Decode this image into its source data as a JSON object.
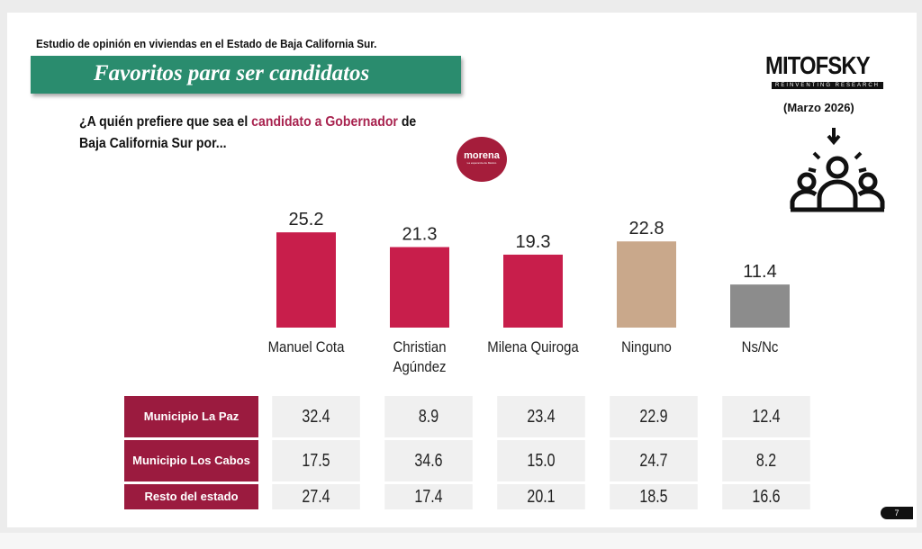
{
  "header": {
    "study": "Estudio de opinión en viviendas en el Estado de Baja California Sur.",
    "banner": "Favoritos para ser candidatos",
    "question_pre": "¿A quién prefiere que sea el ",
    "question_highlight": "candidato a Gobernador",
    "question_post": " de Baja California Sur por...",
    "party_logo": "morena",
    "party_tagline": "La esperanza de México"
  },
  "brand": {
    "logo": "MITOFSKY",
    "tagline": "REINVENTING RESEARCH",
    "date": "(Marzo 2026)",
    "icon": "people-group-icon"
  },
  "chart_data": {
    "type": "bar",
    "categories": [
      "Manuel Cota",
      "Christian Agúndez",
      "Milena Quiroga",
      "Ninguno",
      "Ns/Nc"
    ],
    "values": [
      25.2,
      21.3,
      19.3,
      22.8,
      11.4
    ],
    "colors": [
      "#c81e4b",
      "#c81e4b",
      "#c81e4b",
      "#c9a88b",
      "#8c8c8c"
    ],
    "value_labels": [
      "25.2",
      "21.3",
      "19.3",
      "22.8",
      "11.4"
    ],
    "grid": false
  },
  "table": {
    "rows": [
      {
        "label": "Municipio La Paz",
        "values": [
          "32.4",
          "8.9",
          "23.4",
          "22.9",
          "12.4"
        ]
      },
      {
        "label": "Municipio Los Cabos",
        "values": [
          "17.5",
          "34.6",
          "15.0",
          "24.7",
          "8.2"
        ]
      },
      {
        "label": "Resto del estado",
        "values": [
          "27.4",
          "17.4",
          "20.1",
          "18.5",
          "16.6"
        ]
      }
    ]
  },
  "page_number": "7"
}
